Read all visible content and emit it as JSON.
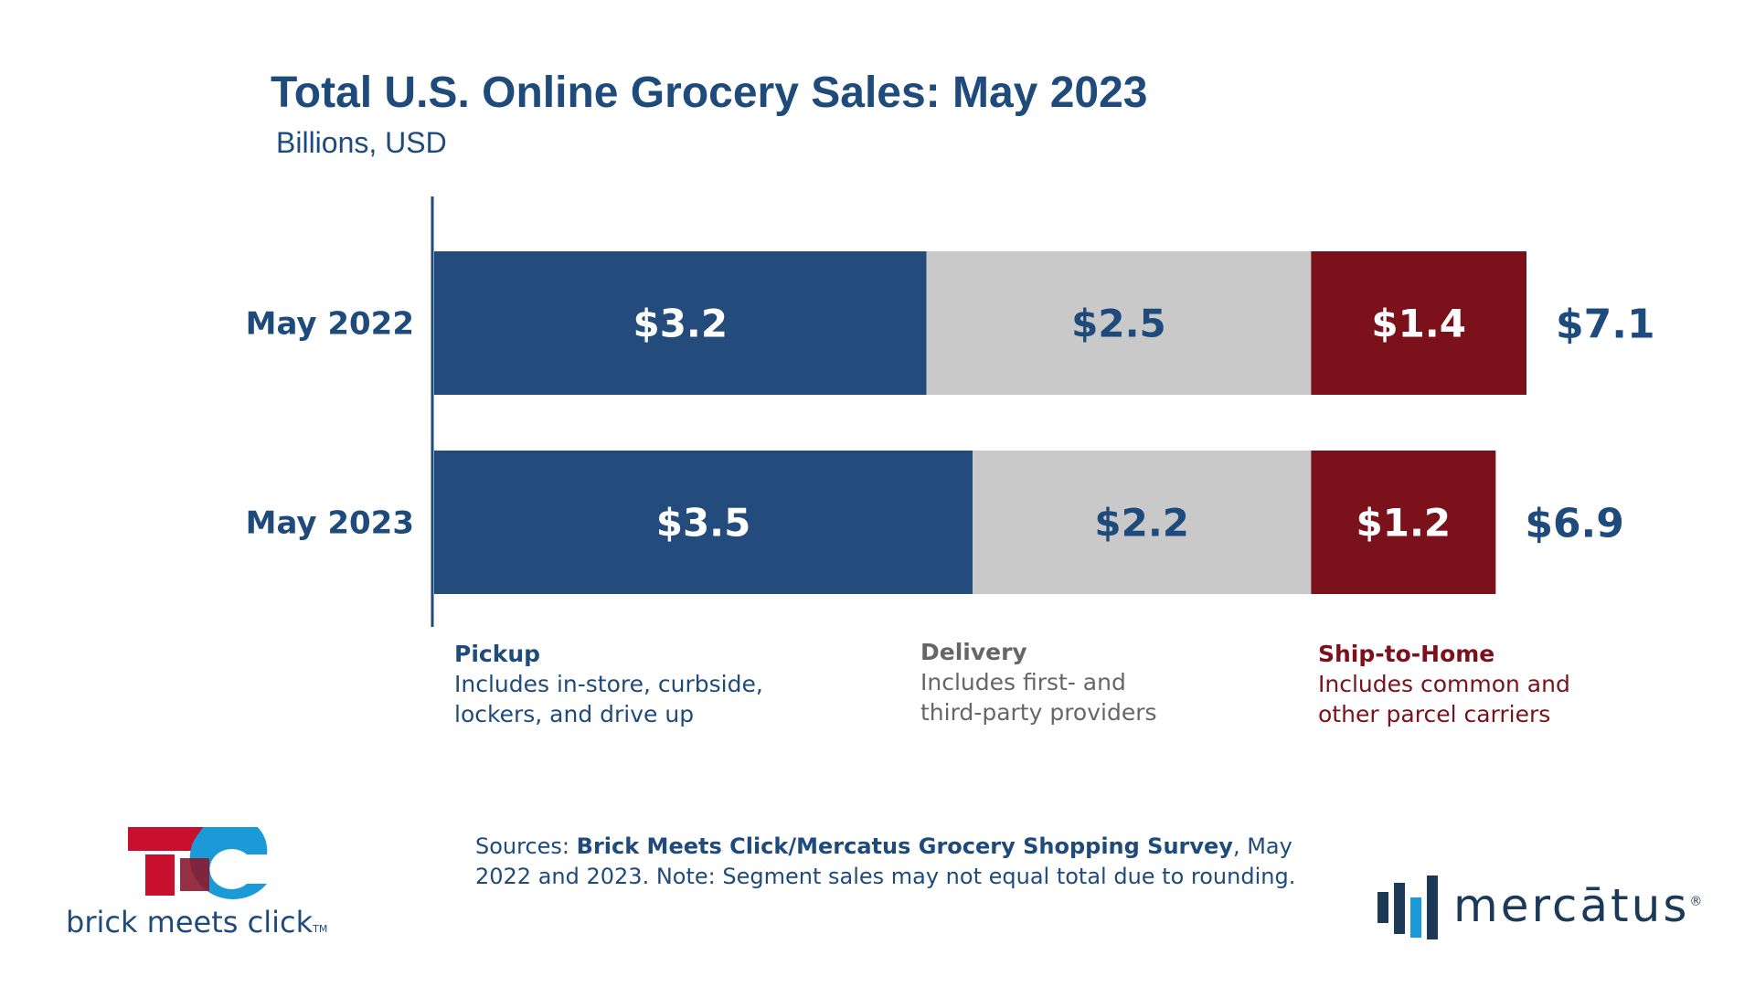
{
  "header": {
    "title": "Total U.S. Online Grocery Sales: May 2023",
    "subtitle": "Billions, USD"
  },
  "chart_data": {
    "type": "bar",
    "orientation": "horizontal",
    "stacked": true,
    "categories": [
      "May 2022",
      "May 2023"
    ],
    "series": [
      {
        "name": "Pickup",
        "values": [
          3.2,
          3.5
        ],
        "labels": [
          "$3.2",
          "$3.5"
        ],
        "color": "#234b7b",
        "label_color": "#ffffff"
      },
      {
        "name": "Delivery",
        "values": [
          2.5,
          2.2
        ],
        "labels": [
          "$2.5",
          "$2.2"
        ],
        "color": "#c9c9c9",
        "label_color": "#1f4a7c"
      },
      {
        "name": "Ship-to-Home",
        "values": [
          1.4,
          1.2
        ],
        "labels": [
          "$1.4",
          "$1.2"
        ],
        "color": "#7b111b",
        "label_color": "#ffffff"
      }
    ],
    "totals": [
      7.1,
      6.9
    ],
    "total_labels": [
      "$7.1",
      "$6.9"
    ],
    "xlim": [
      0,
      7.1
    ],
    "grid": false,
    "legend_position": "bottom"
  },
  "legend": [
    {
      "title": "Pickup",
      "description": "Includes in-store, curbside, lockers, and drive up",
      "color": "#1f4a7c"
    },
    {
      "title": "Delivery",
      "description": "Includes first- and third-party providers",
      "color": "#666666"
    },
    {
      "title": "Ship-to-Home",
      "description": "Includes common and other parcel carriers",
      "color": "#7b111b"
    }
  ],
  "footer": {
    "sources_prefix": "Sources: ",
    "sources_bold": "Brick Meets Click/Mercatus Grocery Shopping Survey",
    "sources_rest": ", May 2022 and 2023. Note: Segment sales may not equal total due to rounding.",
    "brick_logo_text": "brick meets click",
    "brick_logo_tm": "TM",
    "mercatus_logo_text": "mercātus",
    "mercatus_logo_reg": "®"
  },
  "colors": {
    "title": "#1f4a7c",
    "pickup": "#234b7b",
    "delivery": "#c9c9c9",
    "ship_to_home": "#7b111b",
    "logo_red": "#c8102e",
    "logo_cyan": "#1a9ad6"
  }
}
